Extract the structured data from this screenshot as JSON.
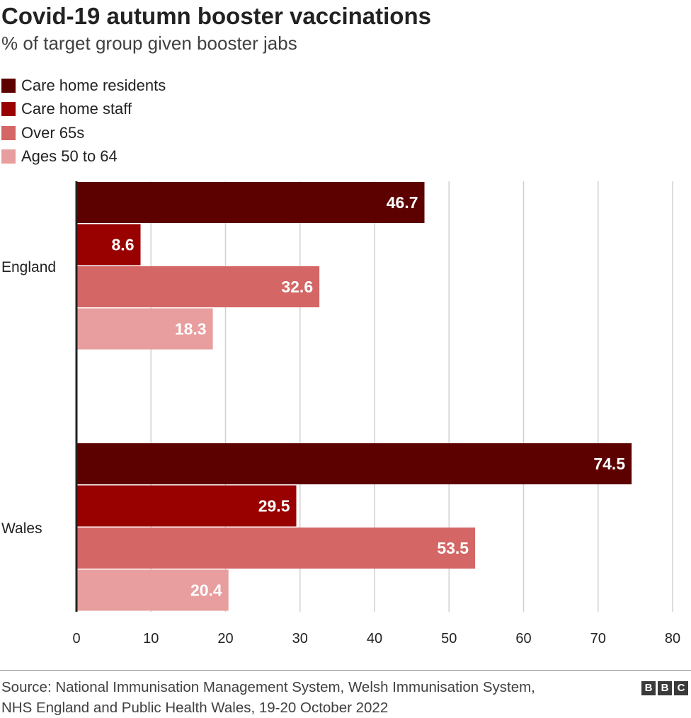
{
  "header": {
    "title": "Covid-19 autumn booster vaccinations",
    "subtitle": "% of target group given booster jabs"
  },
  "legend": [
    {
      "label": "Care home residents",
      "color": "#5c0000"
    },
    {
      "label": "Care home staff",
      "color": "#990000"
    },
    {
      "label": "Over 65s",
      "color": "#d46666"
    },
    {
      "label": "Ages 50 to 64",
      "color": "#e89e9e"
    }
  ],
  "chart_data": {
    "type": "bar",
    "orientation": "horizontal",
    "title": "Covid-19 autumn booster vaccinations",
    "subtitle": "% of target group given booster jabs",
    "categories": [
      "England",
      "Wales"
    ],
    "series": [
      {
        "name": "Care home residents",
        "values": [
          46.7,
          74.5
        ],
        "labels": [
          "46.7",
          "74.5"
        ],
        "color": "#5c0000"
      },
      {
        "name": "Care home staff",
        "values": [
          8.6,
          29.5
        ],
        "labels": [
          "8.6",
          "29.5"
        ],
        "color": "#990000"
      },
      {
        "name": "Over 65s",
        "values": [
          32.6,
          53.5
        ],
        "labels": [
          "32.6",
          "53.5"
        ],
        "color": "#d46666"
      },
      {
        "name": "Ages 50 to 64",
        "values": [
          18.3,
          20.4
        ],
        "labels": [
          "18.3",
          "20.4"
        ],
        "color": "#e89e9e"
      }
    ],
    "xlim": [
      0,
      80
    ],
    "xticks": [
      "0",
      "10",
      "20",
      "30",
      "40",
      "50",
      "60",
      "70",
      "80"
    ],
    "xlabel": "",
    "ylabel": "",
    "grid": true,
    "legend_position": "top-left"
  },
  "footer": {
    "source_line1": "Source: National Immunisation Management System, Welsh Immunisation System,",
    "source_line2": "NHS England and Public Health Wales, 19-20 October 2022",
    "logo_letters": [
      "B",
      "B",
      "C"
    ]
  }
}
